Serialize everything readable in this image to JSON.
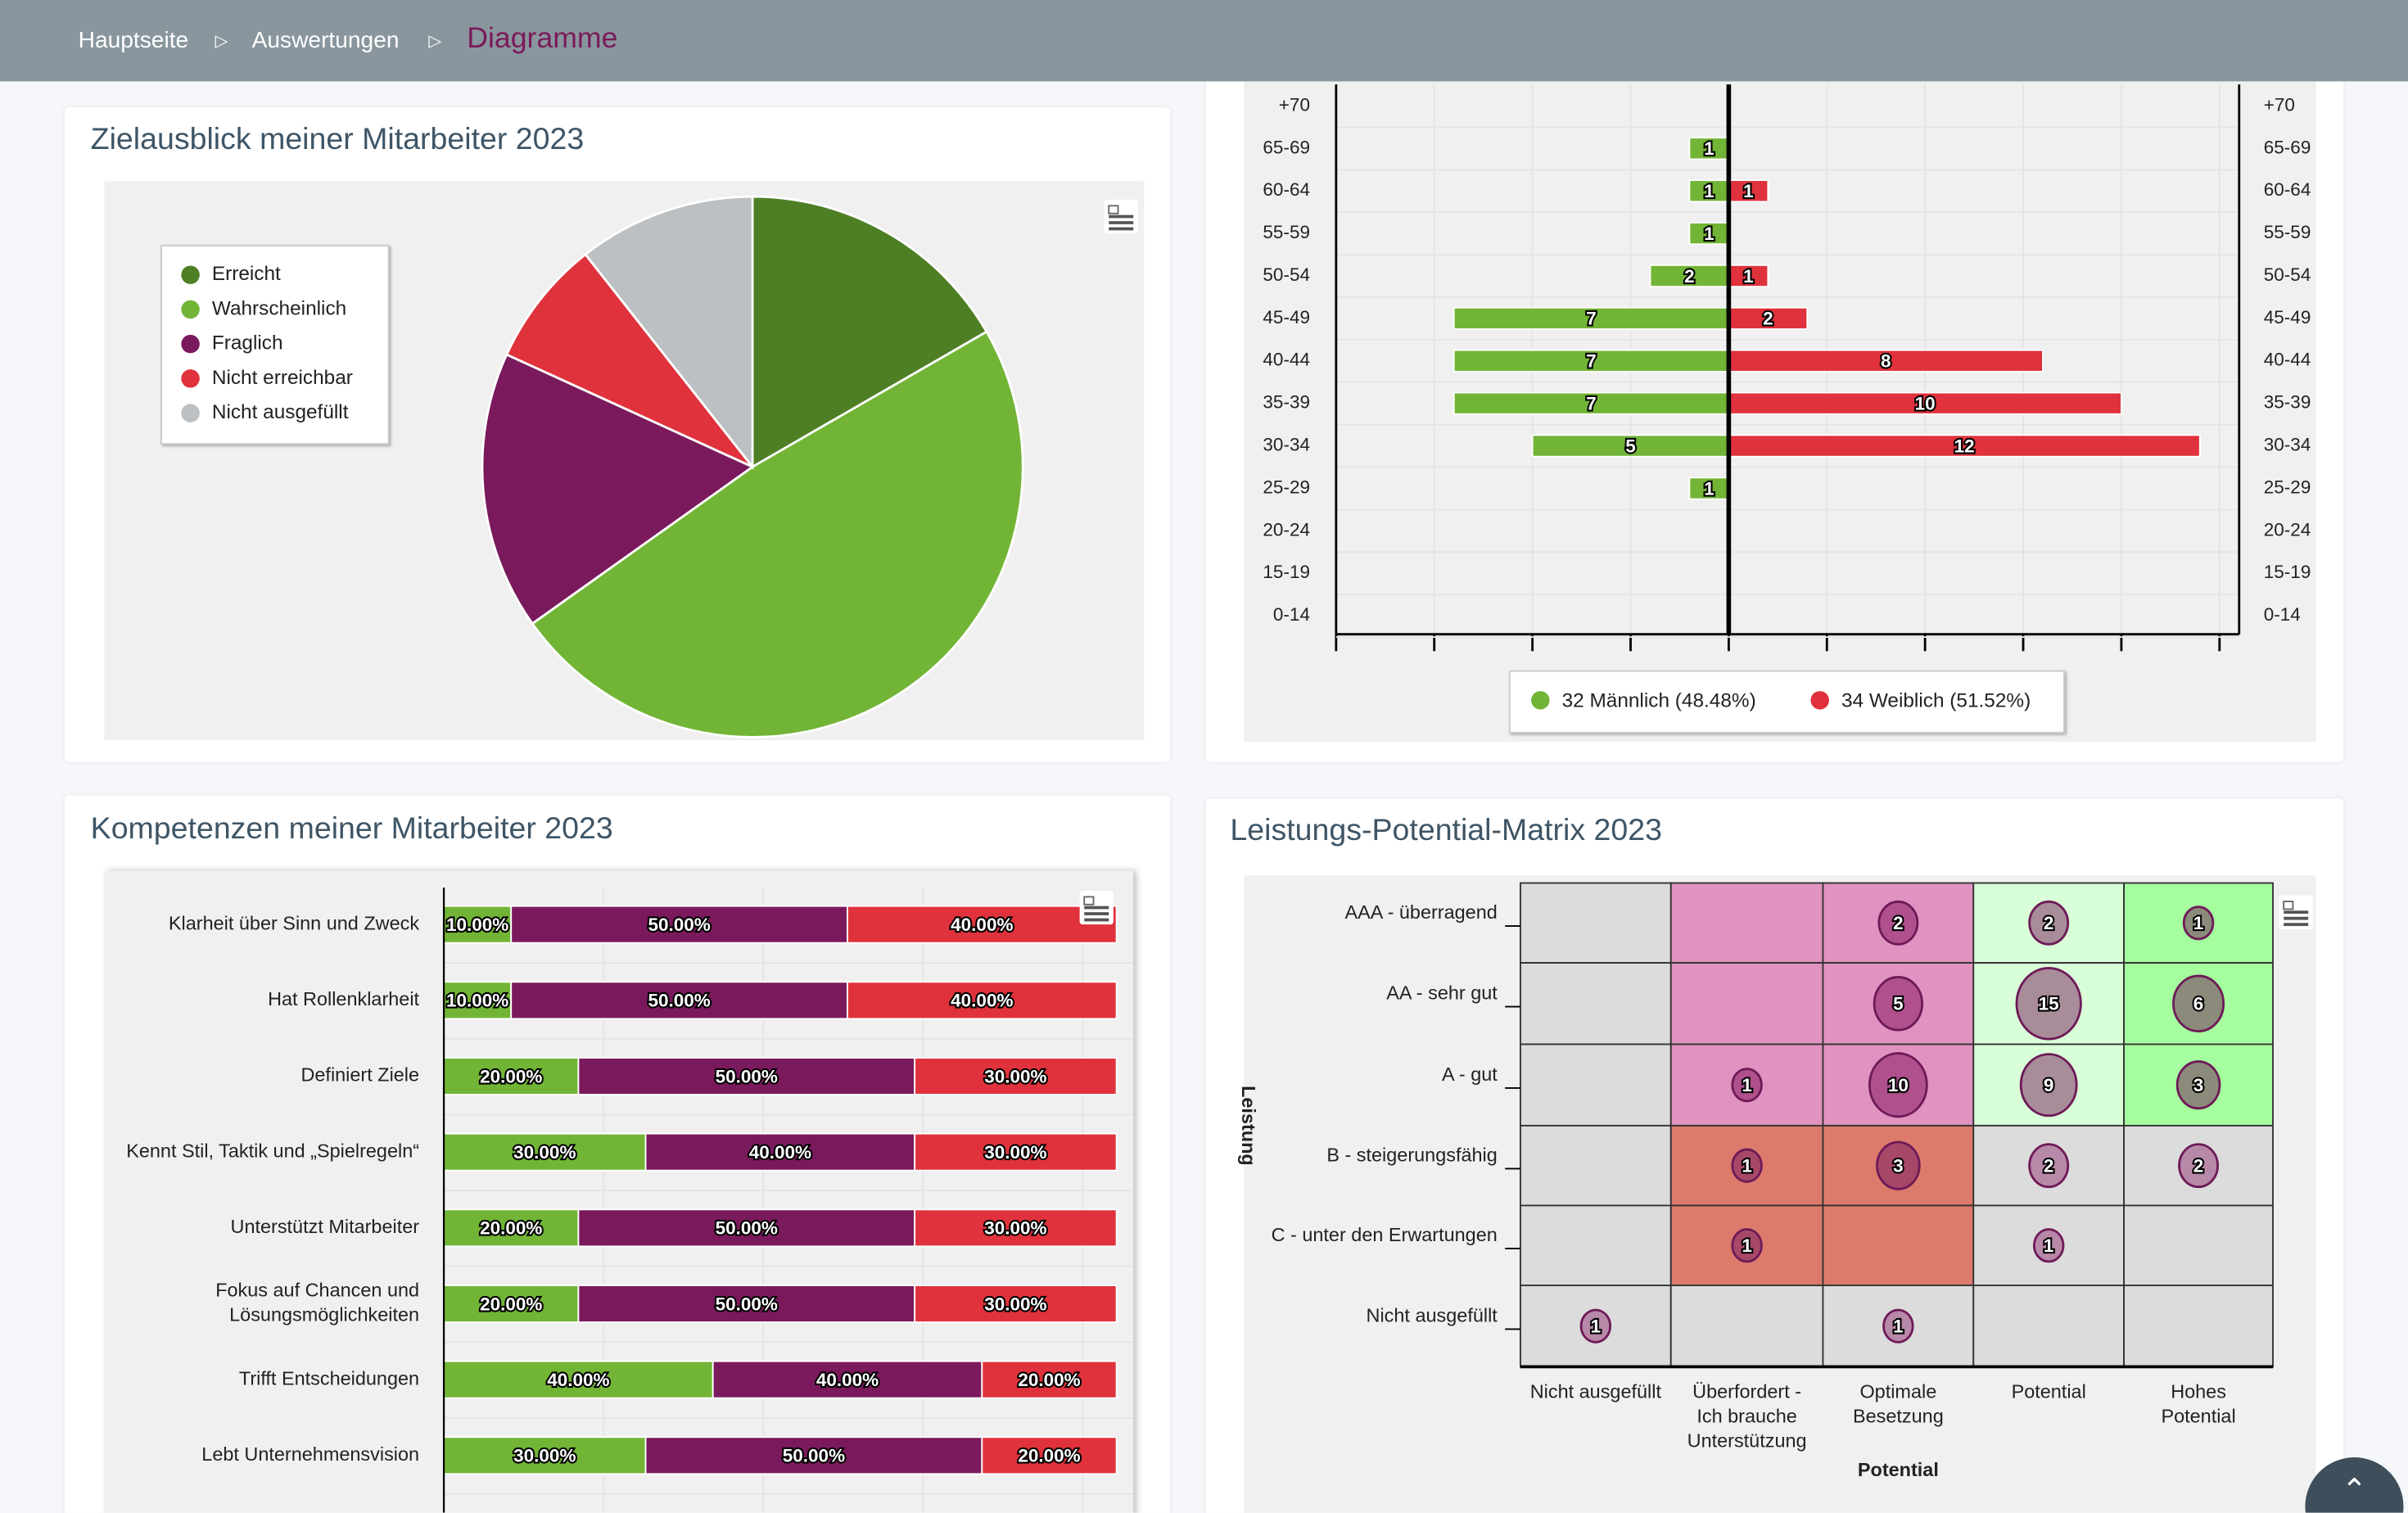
{
  "breadcrumb": {
    "items": [
      "Hauptseite",
      "Auswertungen"
    ],
    "current": "Diagramme",
    "separator": "▷"
  },
  "panels": {
    "pie": {
      "title": "Zielausblick meiner Mitarbeiter 2023"
    },
    "competencies": {
      "title": "Kompetenzen meiner Mitarbeiter 2023"
    },
    "matrix": {
      "title": "Leistungs-Potential-Matrix 2023"
    }
  },
  "icons": {
    "menu": "hamburger-export-icon",
    "scroll_top": "chevron-up-icon"
  },
  "chart_data": [
    {
      "type": "pie",
      "title": "Zielausblick meiner Mitarbeiter 2023",
      "legend": "left",
      "slices": [
        {
          "name": "Erreicht",
          "value": 11,
          "color": "#4e7f24"
        },
        {
          "name": "Wahrscheinlich",
          "value": 32,
          "color": "#72b536"
        },
        {
          "name": "Fraglich",
          "value": 11,
          "color": "#7a1a5c"
        },
        {
          "name": "Nicht erreichbar",
          "value": 5,
          "color": "#e0323c"
        },
        {
          "name": "Nicht ausgefüllt",
          "value": 7,
          "color": "#bcc0c3"
        }
      ]
    },
    {
      "type": "bar",
      "orientation": "horizontal-pyramid",
      "categories": [
        "+70",
        "65-69",
        "60-64",
        "55-59",
        "50-54",
        "45-49",
        "40-44",
        "35-39",
        "30-34",
        "25-29",
        "20-24",
        "15-19",
        "0-14"
      ],
      "series": [
        {
          "name": "32 Männlich (48.48%)",
          "color": "#72b536",
          "values": [
            0,
            1,
            1,
            1,
            2,
            7,
            7,
            7,
            5,
            1,
            0,
            0,
            0
          ]
        },
        {
          "name": "34 Weiblich (51.52%)",
          "color": "#e0323c",
          "values": [
            0,
            0,
            1,
            0,
            1,
            2,
            8,
            10,
            12,
            0,
            0,
            0,
            0
          ]
        }
      ],
      "xlim": [
        -10,
        13
      ],
      "legend": "bottom",
      "grid": true
    },
    {
      "type": "bar",
      "orientation": "horizontal-stacked-percent",
      "title": "Kompetenzen meiner Mitarbeiter 2023",
      "categories": [
        "Klarheit über Sinn und Zweck",
        "Hat Rollenklarheit",
        "Definiert Ziele",
        "Kennt Stil, Taktik und „Spielregeln“",
        "Unterstützt Mitarbeiter",
        "Fokus auf Chancen und\nLösungsmöglichkeiten",
        "Trifft Entscheidungen",
        "Lebt Unternehmensvision"
      ],
      "series": [
        {
          "color": "#72b536",
          "values": [
            10,
            10,
            20,
            30,
            20,
            20,
            40,
            30
          ],
          "labels": [
            "10.00%",
            "10.00%",
            "20.00%",
            "30.00%",
            "20.00%",
            "20.00%",
            "40.00%",
            "30.00%"
          ]
        },
        {
          "color": "#7a1a5c",
          "values": [
            50,
            50,
            50,
            40,
            50,
            50,
            40,
            50
          ],
          "labels": [
            "50.00%",
            "50.00%",
            "50.00%",
            "40.00%",
            "50.00%",
            "50.00%",
            "40.00%",
            "50.00%"
          ]
        },
        {
          "color": "#e0323c",
          "values": [
            40,
            40,
            30,
            30,
            30,
            30,
            20,
            20
          ],
          "labels": [
            "40.00%",
            "40.00%",
            "30.00%",
            "30.00%",
            "30.00%",
            "30.00%",
            "20.00%",
            "20.00%"
          ]
        }
      ],
      "xlim": [
        0,
        100
      ],
      "grid": true
    },
    {
      "type": "heatmap",
      "title": "Leistungs-Potential-Matrix 2023",
      "ylabel": "Leistung",
      "xlabel": "Potential",
      "rows": [
        "AAA - überragend",
        "AA - sehr gut",
        "A - gut",
        "B - steigerungsfähig",
        "C - unter den Erwartungen",
        "Nicht ausgefüllt"
      ],
      "cols": [
        "Nicht ausgefüllt",
        "Überfordert -\nIch brauche\nUnterstützung",
        "Optimale\nBesetzung",
        "Potential",
        "Hohes\nPotential"
      ],
      "zone_colors": {
        "grey": "#dcdcdc",
        "pink": "#e093c0",
        "salmon": "#dc7a6c",
        "lightgreen": "#d9ffd9",
        "green": "#a6ff9f"
      },
      "bubbles": [
        {
          "row": 0,
          "col": 2,
          "value": 2
        },
        {
          "row": 0,
          "col": 3,
          "value": 2
        },
        {
          "row": 0,
          "col": 4,
          "value": 1
        },
        {
          "row": 1,
          "col": 2,
          "value": 5
        },
        {
          "row": 1,
          "col": 3,
          "value": 15
        },
        {
          "row": 1,
          "col": 4,
          "value": 6
        },
        {
          "row": 2,
          "col": 1,
          "value": 1
        },
        {
          "row": 2,
          "col": 2,
          "value": 10
        },
        {
          "row": 2,
          "col": 3,
          "value": 9
        },
        {
          "row": 2,
          "col": 4,
          "value": 3
        },
        {
          "row": 3,
          "col": 1,
          "value": 1
        },
        {
          "row": 3,
          "col": 2,
          "value": 3
        },
        {
          "row": 3,
          "col": 3,
          "value": 2
        },
        {
          "row": 3,
          "col": 4,
          "value": 2
        },
        {
          "row": 4,
          "col": 1,
          "value": 1
        },
        {
          "row": 4,
          "col": 3,
          "value": 1
        },
        {
          "row": 5,
          "col": 0,
          "value": 1
        },
        {
          "row": 5,
          "col": 2,
          "value": 1
        }
      ]
    }
  ]
}
